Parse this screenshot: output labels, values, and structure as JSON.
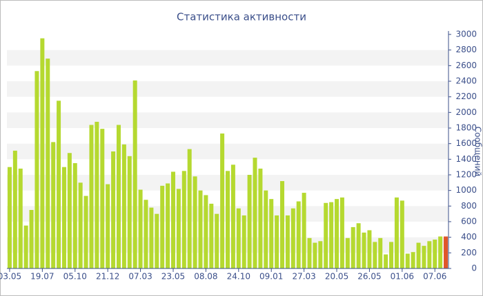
{
  "chart_data": {
    "type": "bar",
    "title": "Статистика активности",
    "y_label": "Сообщений",
    "categories": [
      "03.05",
      null,
      null,
      null,
      null,
      null,
      "19.07",
      null,
      null,
      null,
      null,
      null,
      "05.10",
      null,
      null,
      null,
      null,
      null,
      "21.12",
      null,
      null,
      null,
      null,
      null,
      "07.03",
      null,
      null,
      null,
      null,
      null,
      "23.05",
      null,
      null,
      null,
      null,
      null,
      "08.08",
      null,
      null,
      null,
      null,
      null,
      "24.10",
      null,
      null,
      null,
      null,
      null,
      "09.01",
      null,
      null,
      null,
      null,
      null,
      "27.03",
      null,
      null,
      null,
      null,
      null,
      "20.05",
      null,
      null,
      null,
      null,
      null,
      "26.05",
      null,
      null,
      null,
      null,
      null,
      "01.06",
      null,
      null,
      null,
      null,
      null,
      "07.06",
      null,
      null
    ],
    "values": [
      1300,
      1510,
      1280,
      550,
      750,
      2530,
      2950,
      2690,
      1620,
      2150,
      1300,
      1480,
      1350,
      1100,
      930,
      1840,
      1880,
      1790,
      1080,
      1500,
      1840,
      1590,
      1440,
      2410,
      1010,
      880,
      780,
      700,
      1060,
      1090,
      1240,
      1020,
      1250,
      1530,
      1180,
      1000,
      940,
      830,
      700,
      1730,
      1250,
      1330,
      770,
      680,
      1200,
      1420,
      1280,
      1000,
      890,
      680,
      1120,
      680,
      770,
      860,
      970,
      390,
      330,
      350,
      840,
      850,
      890,
      910,
      390,
      530,
      580,
      460,
      490,
      340,
      390,
      180,
      340,
      910,
      870,
      190,
      210,
      330,
      290,
      350,
      370,
      410,
      410
    ],
    "colors": [
      "#b5d930",
      "#b5d930",
      "#b5d930",
      "#b5d930",
      "#b5d930",
      "#b5d930",
      "#b5d930",
      "#b5d930",
      "#b5d930",
      "#b5d930",
      "#b5d930",
      "#b5d930",
      "#b5d930",
      "#b5d930",
      "#b5d930",
      "#b5d930",
      "#b5d930",
      "#b5d930",
      "#b5d930",
      "#b5d930",
      "#b5d930",
      "#b5d930",
      "#b5d930",
      "#b5d930",
      "#b5d930",
      "#b5d930",
      "#b5d930",
      "#b5d930",
      "#b5d930",
      "#b5d930",
      "#b5d930",
      "#b5d930",
      "#b5d930",
      "#b5d930",
      "#b5d930",
      "#b5d930",
      "#b5d930",
      "#b5d930",
      "#b5d930",
      "#b5d930",
      "#b5d930",
      "#b5d930",
      "#b5d930",
      "#b5d930",
      "#b5d930",
      "#b5d930",
      "#b5d930",
      "#b5d930",
      "#b5d930",
      "#b5d930",
      "#b5d930",
      "#b5d930",
      "#b5d930",
      "#b5d930",
      "#b5d930",
      "#b5d930",
      "#b5d930",
      "#b5d930",
      "#b5d930",
      "#b5d930",
      "#b5d930",
      "#b5d930",
      "#b5d930",
      "#b5d930",
      "#b5d930",
      "#b5d930",
      "#b5d930",
      "#b5d930",
      "#b5d930",
      "#b5d930",
      "#b5d930",
      "#b5d930",
      "#b5d930",
      "#b5d930",
      "#b5d930",
      "#b5d930",
      "#b5d930",
      "#b5d930",
      "#b5d930",
      "#b5d930",
      "#e0562a"
    ],
    "ylim": [
      0,
      3000
    ],
    "yticks": [
      0,
      200,
      400,
      600,
      800,
      1000,
      1200,
      1400,
      1600,
      1800,
      2000,
      2200,
      2400,
      2600,
      2800,
      3000
    ],
    "grid": "bands"
  }
}
